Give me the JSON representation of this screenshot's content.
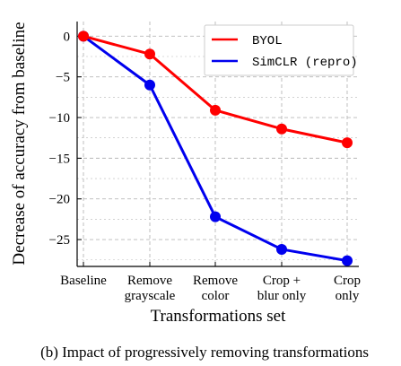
{
  "chart_data": {
    "type": "line",
    "categories": [
      [
        "Baseline"
      ],
      [
        "Remove",
        "grayscale"
      ],
      [
        "Remove",
        "color"
      ],
      [
        "Crop +",
        "blur only"
      ],
      [
        "Crop",
        "only"
      ]
    ],
    "series": [
      {
        "name": "BYOL",
        "color": "#ff0000",
        "values": [
          0,
          -2.2,
          -9.1,
          -11.4,
          -13.1
        ]
      },
      {
        "name": "SimCLR (repro)",
        "color": "#0000ee",
        "values": [
          0,
          -6.0,
          -22.2,
          -26.2,
          -27.6
        ]
      }
    ],
    "xlabel": "Transformations set",
    "ylabel": "Decrease of accuracy from baseline",
    "ylim": [
      -28.3,
      1.8
    ],
    "yticks": [
      0,
      -5,
      -10,
      -15,
      -20,
      -25
    ],
    "ytick_labels": [
      "0",
      "−5",
      "−10",
      "−15",
      "−20",
      "−25"
    ],
    "grid": true,
    "legend_position": "top-right"
  },
  "caption": "(b) Impact of progressively removing transformations"
}
